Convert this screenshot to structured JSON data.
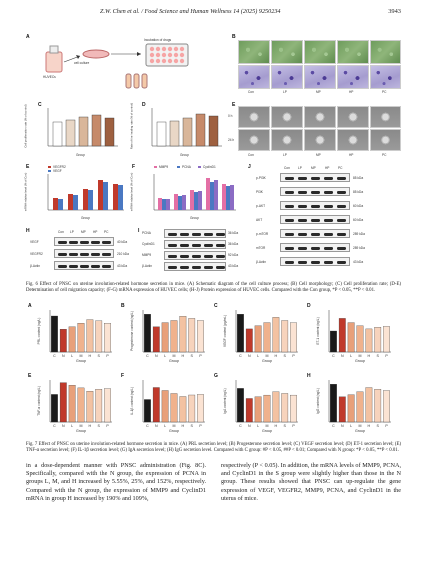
{
  "header": {
    "journal": "Z.W. Chen et al. / Food Science and Human Wellness 14 (2025) 9250234",
    "page_number": "3943"
  },
  "fig6": {
    "panel_labels": [
      "A",
      "B",
      "C",
      "D",
      "E",
      "F",
      "G",
      "H",
      "I",
      "J"
    ],
    "schematic": {
      "cells": "HUVECs",
      "step1": "cell culture",
      "step2": "Incubation of drugs"
    },
    "groups": [
      "Con",
      "LP",
      "MP",
      "HP",
      "PC"
    ],
    "time_labels": [
      "0 h",
      "24 h"
    ],
    "c_ylabel": "Cell proliferation rate (% of control)",
    "d_ylabel": "Rate of the healing rate (% of control)",
    "xlabel": "Group",
    "e_legend": [
      "VEGFR2",
      "VEGF"
    ],
    "e_ylabel": "mRNA relative level (% of Con)",
    "f_legend": [
      "MMP9",
      "PCNA",
      "CyclinD1"
    ],
    "f_ylabel": "mRNA relative level (% of Con)",
    "blot_h": {
      "rows": [
        "VEGF",
        "VEGFR2",
        "β-Actin"
      ],
      "kda": [
        "40 kDa",
        "210 kDa",
        "43 kDa"
      ]
    },
    "blot_i": {
      "rows": [
        "PCNA",
        "CyclinD1",
        "MMP9",
        "β-Actin"
      ],
      "kda": [
        "36 kDa",
        "36 kDa",
        "92 kDa",
        "43 kDa"
      ]
    },
    "blot_j": {
      "rows": [
        "p-PI3K",
        "PI3K",
        "p-AKT",
        "AKT",
        "p-mTOR",
        "mTOR",
        "β-Actin"
      ],
      "kda": [
        "85 kDa",
        "85 kDa",
        "60 kDa",
        "60 kDa",
        "289 kDa",
        "289 kDa",
        "43 kDa"
      ]
    },
    "caption": "Fig. 6  Effect of PNSC on uterine involution-related hormone secretion in mice. (A) Schematic diagram of the cell culture process; (B) Cell morphology; (C) Cell proliferation rate; (D-E) Determination of cell migration capacity; (F-G) mRNA expression of HUVEC cells; (H-J) Protein expression of HUVEC cells. Compared with the Con group, *P < 0.05, **P < 0.01."
  },
  "fig7": {
    "groups": [
      "C",
      "N",
      "L",
      "M",
      "H",
      "S",
      "P"
    ],
    "xlabel": "Group",
    "panels": [
      {
        "label": "A",
        "ylabel": "PRL content (ng/L)",
        "values": [
          3.0,
          1.9,
          2.1,
          2.4,
          2.7,
          2.6,
          2.4
        ],
        "ymax": 3.5
      },
      {
        "label": "B",
        "ylabel": "Progesterone content (ng/L)",
        "values": [
          18,
          12,
          14,
          15,
          17,
          16,
          15
        ],
        "ymax": 20
      },
      {
        "label": "C",
        "ylabel": "VEGF content (pg/mL)",
        "values": [
          180,
          110,
          125,
          140,
          165,
          150,
          140
        ],
        "ymax": 200
      },
      {
        "label": "D",
        "ylabel": "ET-1 content (ng/L)",
        "values": [
          100,
          160,
          140,
          125,
          110,
          118,
          122
        ],
        "ymax": 200
      },
      {
        "label": "E",
        "ylabel": "TNF-α content (ng/L)",
        "values": [
          420,
          600,
          560,
          520,
          470,
          500,
          510
        ],
        "ymax": 640
      },
      {
        "label": "F",
        "ylabel": "IL-1β content (ng/L)",
        "values": [
          75,
          115,
          105,
          95,
          85,
          90,
          92
        ],
        "ymax": 140
      },
      {
        "label": "G",
        "ylabel": "IgA content (ng/L)",
        "values": [
          20,
          14,
          15,
          16,
          18,
          17,
          16
        ],
        "ymax": 25
      },
      {
        "label": "H",
        "ylabel": "IgG content (ng/L)",
        "values": [
          900,
          600,
          650,
          720,
          820,
          780,
          750
        ],
        "ymax": 1000
      }
    ],
    "caption": "Fig. 7  Effect of PNSC on uterine involution-related hormone secretion in mice. (A) PRL secretion level; (B) Progesterone secretion level; (C) VEGF secretion level; (D) ET-1 secretion level; (E) TNF-α secretion level; (F) IL-1β secretion level; (G) IgA secretion level; (H) IgG secretion level. Compared with C group: #P < 0.05, ##P < 0.01; Compared with N group: *P < 0.05, **P < 0.01."
  },
  "body": {
    "left": "in a dose-dependent manner with PNSC administration (Fig. 8C). Specifically, compared with the N group, the expression of PCNA in groups L, M, and H increased by 5.55%, 25%, and 152%, respectively. Compared with the N group, the expression of MMP9 and CyclinD1 mRNA in group H increased by 190% and 109%,",
    "right": "respectively (P < 0.05). In addition, the mRNA levels of MMP9, PCNA, and CyclinD1 in the S group were slightly higher than those in the N group. These results showed that PNSC can up-regulate the gene expression of VEGF, VEGFR2, MMP9, PCNA, and CyclinD1 in the uterus of mice."
  },
  "colors": {
    "con": "#1a1a1a",
    "red": "#c0392b",
    "orange": "#e8a07a",
    "peach": "#f3c2a2",
    "light": "#fbe3d3",
    "blue": "#4a78c2",
    "pink": "#e36fa5",
    "purple": "#8b6cc4"
  }
}
